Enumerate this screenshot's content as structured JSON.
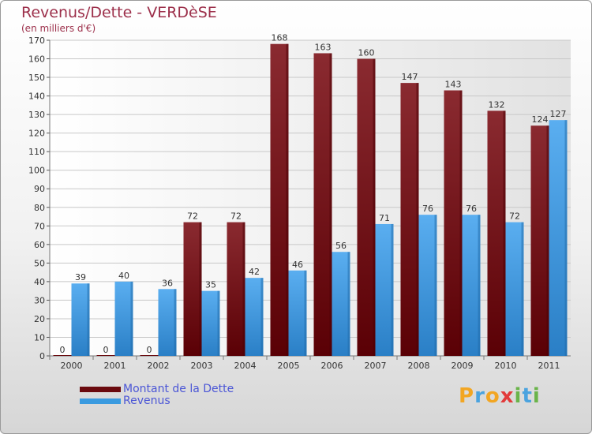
{
  "header": {
    "title": "Revenus/Dette - VERDèSE",
    "subtitle": "(en milliers d'€)"
  },
  "legend": {
    "items": [
      {
        "label": "Montant de la Dette",
        "color": "#6a0a0e"
      },
      {
        "label": "Revenus",
        "color": "#3b9be0"
      }
    ]
  },
  "logo": {
    "text": "Proxiti",
    "letters": [
      {
        "ch": "P",
        "color": "#f2a623"
      },
      {
        "ch": "r",
        "color": "#4aa3df"
      },
      {
        "ch": "o",
        "color": "#f2a623"
      },
      {
        "ch": "x",
        "color": "#e23a3a"
      },
      {
        "ch": "i",
        "color": "#6ab44a"
      },
      {
        "ch": "t",
        "color": "#4aa3df"
      },
      {
        "ch": "i",
        "color": "#6ab44a"
      }
    ]
  },
  "chart_data": {
    "type": "bar",
    "title": "Revenus/Dette - VERDèSE",
    "ylabel": "(en milliers d'€)",
    "categories": [
      "2000",
      "2001",
      "2002",
      "2003",
      "2004",
      "2005",
      "2006",
      "2007",
      "2008",
      "2009",
      "2010",
      "2011"
    ],
    "series": [
      {
        "name": "Montant de la Dette",
        "color": "#6a0a0e",
        "values": [
          0,
          0,
          0,
          72,
          72,
          168,
          163,
          160,
          147,
          143,
          132,
          124
        ]
      },
      {
        "name": "Revenus",
        "color": "#3b9be0",
        "values": [
          39,
          40,
          36,
          35,
          42,
          46,
          56,
          71,
          76,
          76,
          72,
          127
        ]
      }
    ],
    "ylim": [
      0,
      170
    ],
    "yticks": [
      0,
      10,
      20,
      30,
      40,
      50,
      60,
      70,
      80,
      90,
      100,
      110,
      120,
      130,
      140,
      150,
      160,
      170
    ],
    "grid": true,
    "legend_position": "bottom-left"
  }
}
